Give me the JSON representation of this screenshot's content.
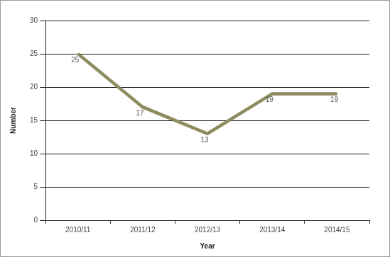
{
  "chart_data": {
    "type": "line",
    "x_label": "Year",
    "y_label": "Number",
    "categories": [
      "2010/11",
      "2011/12",
      "2012/13",
      "2013/14",
      "2014/15"
    ],
    "values": [
      25,
      17,
      13,
      19,
      19
    ],
    "color": "#8e8c5c",
    "ylim": [
      0,
      30
    ],
    "yticks": [
      0,
      5,
      10,
      15,
      20,
      25,
      30
    ],
    "grid": true,
    "data_labels": true
  }
}
